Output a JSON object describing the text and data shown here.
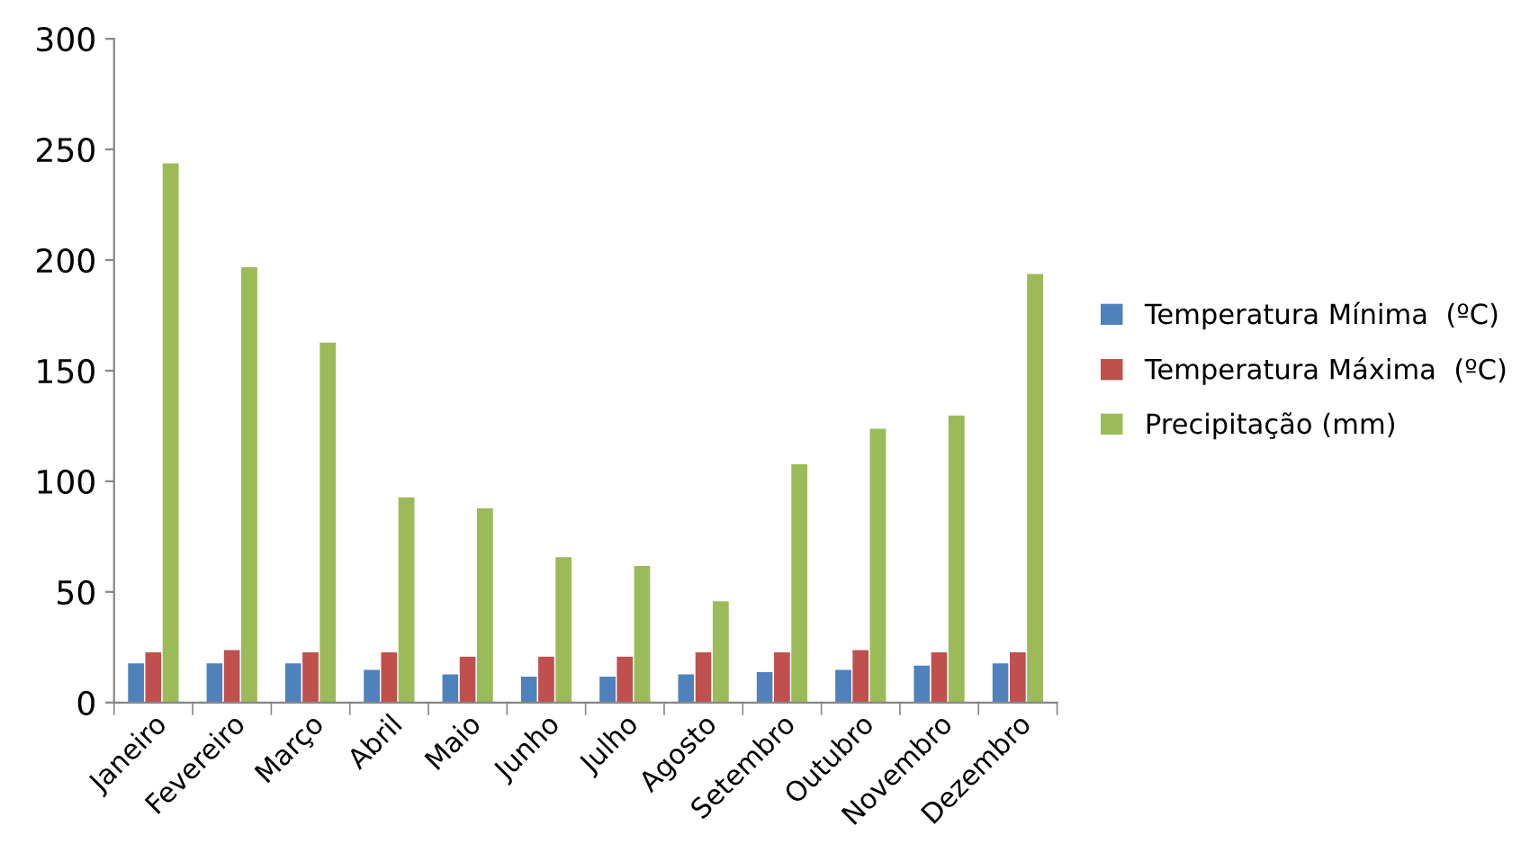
{
  "chart_data": {
    "type": "bar",
    "categories": [
      "Janeiro",
      "Fevereiro",
      "Março",
      "Abril",
      "Maio",
      "Junho",
      "Julho",
      "Agosto",
      "Setembro",
      "Outubro",
      "Novembro",
      "Dezembro"
    ],
    "series": [
      {
        "name": "Temperatura Mínima  (ºC)",
        "color": "#4f81bd",
        "values": [
          18,
          18,
          18,
          15,
          13,
          12,
          12,
          13,
          14,
          15,
          17,
          18
        ]
      },
      {
        "name": "Temperatura Máxima  (ºC)",
        "color": "#c0504d",
        "values": [
          23,
          24,
          23,
          23,
          21,
          21,
          21,
          23,
          23,
          24,
          23,
          23
        ]
      },
      {
        "name": "Precipitação (mm)",
        "color": "#9bbb59",
        "values": [
          244,
          197,
          163,
          93,
          88,
          66,
          62,
          46,
          108,
          124,
          130,
          194
        ]
      }
    ],
    "ylim": [
      0,
      300
    ],
    "yticks": [
      0,
      50,
      100,
      150,
      200,
      250,
      300
    ],
    "grid": false,
    "legend": "right"
  }
}
